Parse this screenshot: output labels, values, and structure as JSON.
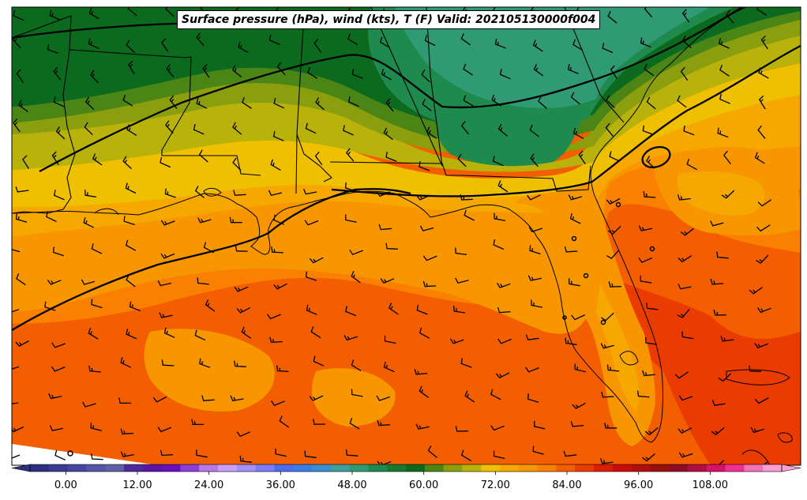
{
  "title": "Surface pressure (hPa), wind (kts), T (F) Valid: 202105130000f004",
  "colorbar": {
    "min": -6,
    "max": 120,
    "step": 3,
    "extend": "both",
    "tick_labels": [
      "0.00",
      "12.00",
      "24.00",
      "36.00",
      "48.00",
      "60.00",
      "72.00",
      "84.00",
      "96.00",
      "108.00"
    ],
    "colors": [
      "#2f2f7f",
      "#3b3b93",
      "#4646a1",
      "#5555a8",
      "#6060a8",
      "#4e2a9a",
      "#5a14a6",
      "#6a0fbd",
      "#8b3fd6",
      "#b77aeb",
      "#c8a0ff",
      "#a590ff",
      "#7c7cff",
      "#4a6df0",
      "#3a7de6",
      "#3a8fd0",
      "#3fa0a0",
      "#2f9a73",
      "#1f8a4d",
      "#157a32",
      "#0b6a1e",
      "#4a8516",
      "#8a9e0e",
      "#b9b20a",
      "#eec000",
      "#f6a800",
      "#f89600",
      "#fb7f00",
      "#f35f00",
      "#ea3c00",
      "#de1c00",
      "#cc0a0a",
      "#b50d0d",
      "#9a0e0e",
      "#8f0c25",
      "#b40c45",
      "#d8106a",
      "#f03095",
      "#f672b8",
      "#fb9fd3"
    ]
  },
  "legend_colors": {
    "green_dark": "#0b6a1e",
    "green_mid": "#1f8a4d",
    "green_light": "#2f9a73",
    "olive": "#8a9e0e",
    "olive_light": "#4a8516",
    "yellow": "#eec000",
    "gold": "#f6a800",
    "orange_light": "#f89600",
    "orange": "#fb7f00",
    "orange_dark": "#f35f00",
    "red_orange": "#ea3c00"
  }
}
